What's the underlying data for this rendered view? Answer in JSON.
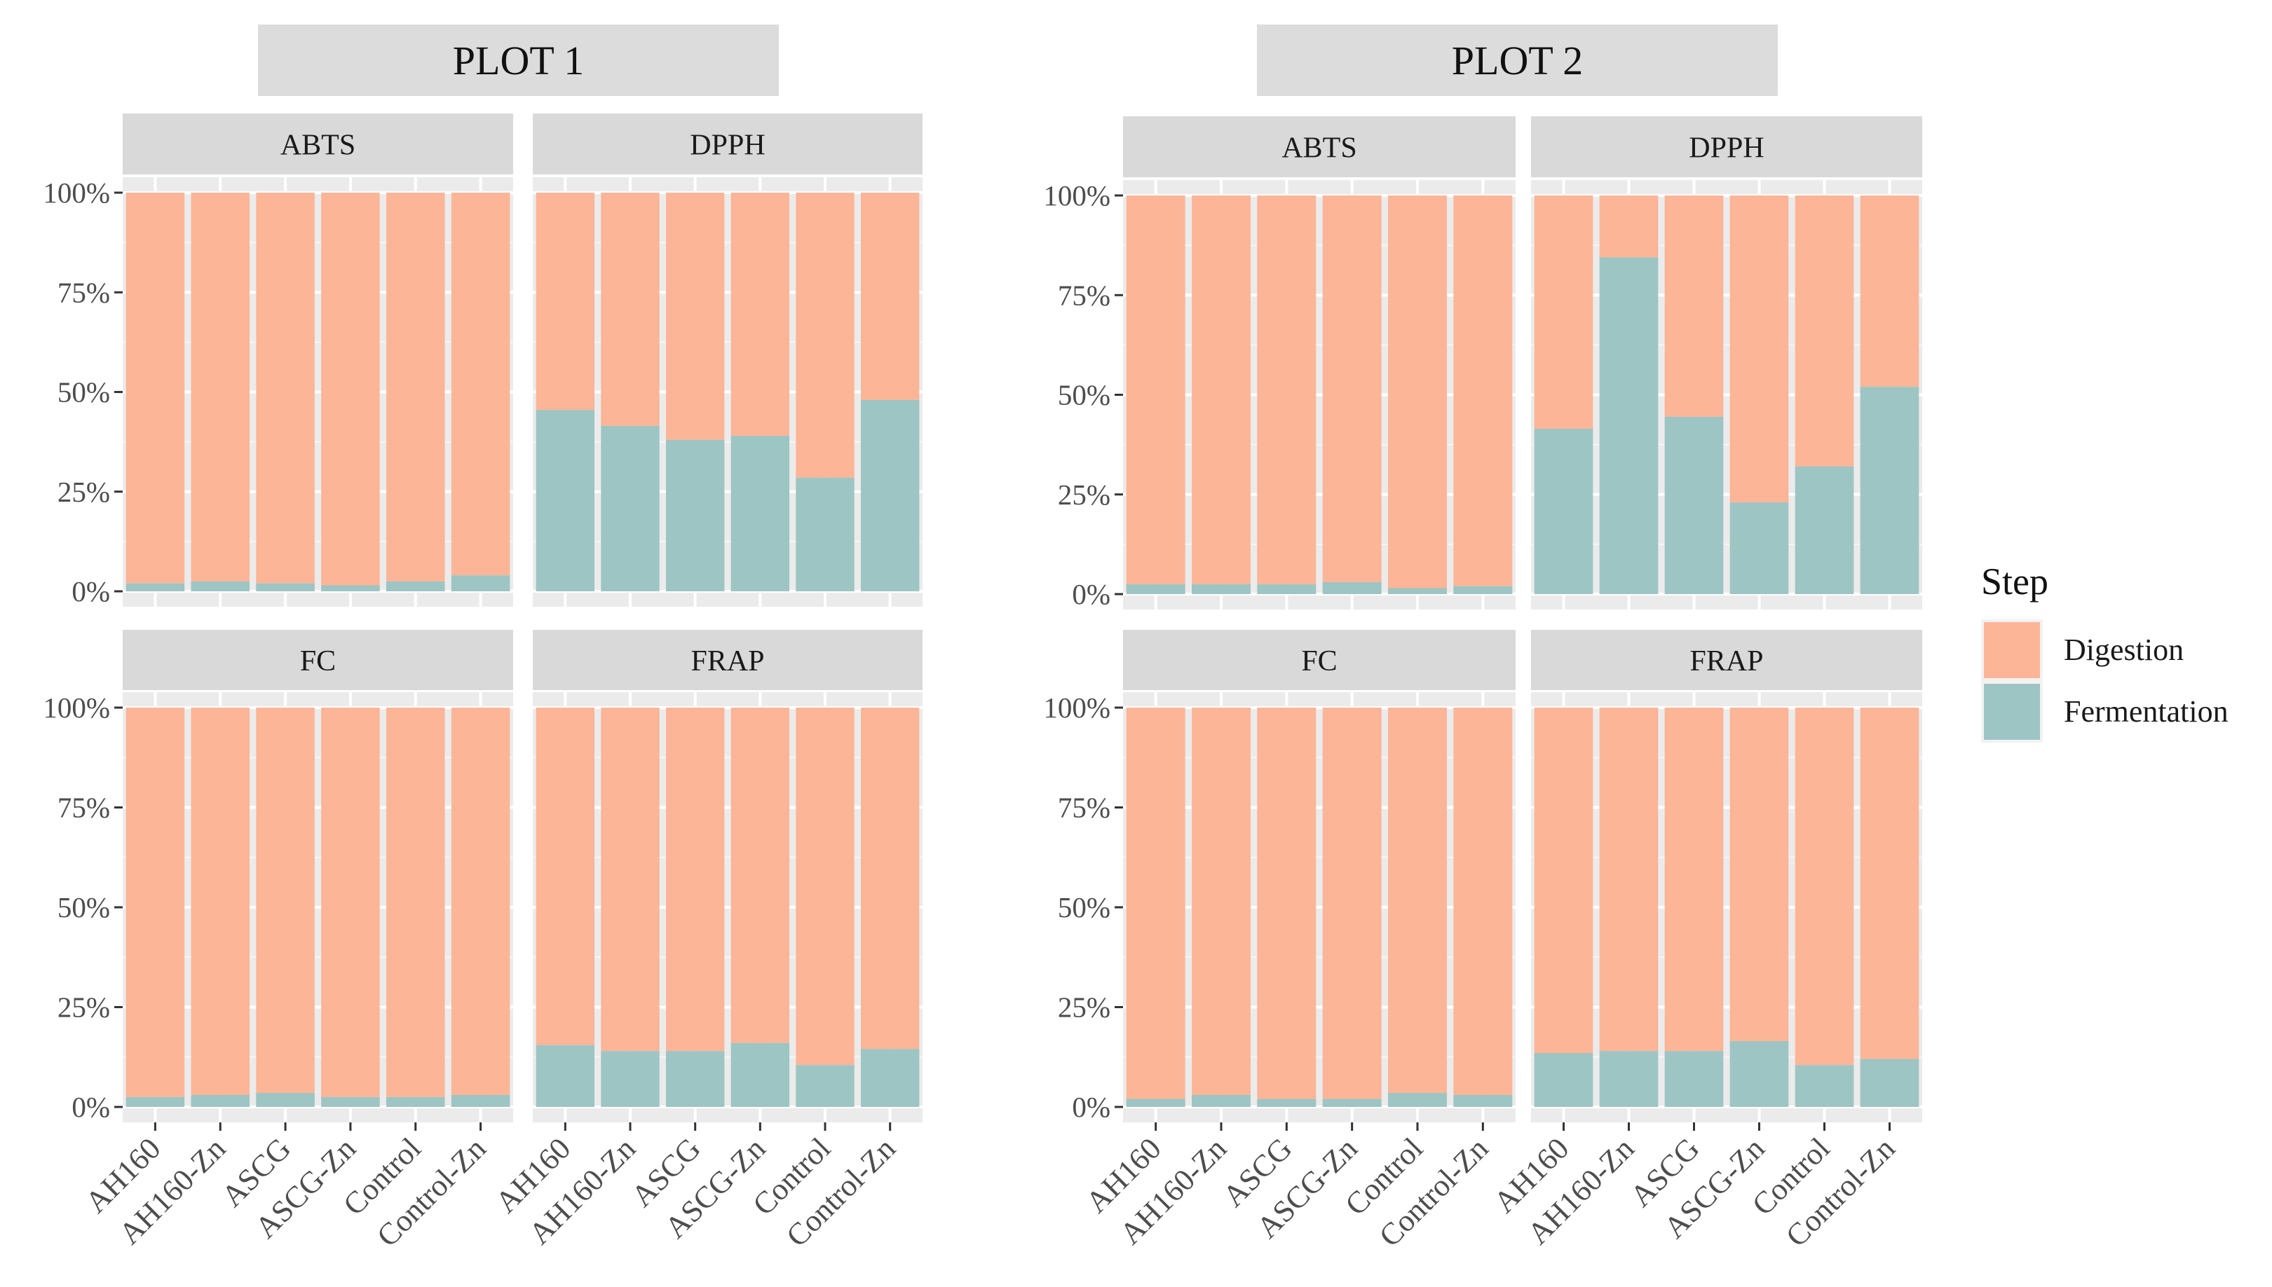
{
  "chart_data": {
    "type": "bar",
    "stacked": "percent",
    "categories": [
      "AH160",
      "AH160-Zn",
      "ASCG",
      "ASCG-Zn",
      "Control",
      "Control-Zn"
    ],
    "ylim": [
      0,
      100
    ],
    "y_ticks": [
      "0%",
      "25%",
      "50%",
      "75%",
      "100%"
    ],
    "legend": {
      "title": "Step",
      "placement": "right",
      "entries": [
        {
          "name": "Digestion",
          "color": "#FDB597"
        },
        {
          "name": "Fermentation",
          "color": "#9DC5C3"
        }
      ]
    },
    "plots": [
      {
        "title": "PLOT 1",
        "facets": [
          {
            "name": "ABTS",
            "fermentation": [
              2,
              2.5,
              2,
              1.5,
              2.5,
              4
            ]
          },
          {
            "name": "DPPH",
            "fermentation": [
              45.5,
              41.5,
              38,
              39,
              28.5,
              48
            ]
          },
          {
            "name": "FC",
            "fermentation": [
              2.5,
              3,
              3.5,
              2.5,
              2.5,
              3
            ]
          },
          {
            "name": "FRAP",
            "fermentation": [
              15.5,
              14,
              14,
              16,
              10.5,
              14.5
            ]
          }
        ]
      },
      {
        "title": "PLOT 2",
        "facets": [
          {
            "name": "ABTS",
            "fermentation": [
              2.5,
              2.5,
              2.5,
              3,
              1.5,
              2
            ]
          },
          {
            "name": "DPPH",
            "fermentation": [
              41.5,
              84.5,
              44.5,
              23,
              32,
              52
            ]
          },
          {
            "name": "FC",
            "fermentation": [
              2,
              3,
              2,
              2,
              3.5,
              3
            ]
          },
          {
            "name": "FRAP",
            "fermentation": [
              13.5,
              14,
              14,
              16.5,
              10.5,
              12
            ]
          }
        ]
      }
    ]
  }
}
